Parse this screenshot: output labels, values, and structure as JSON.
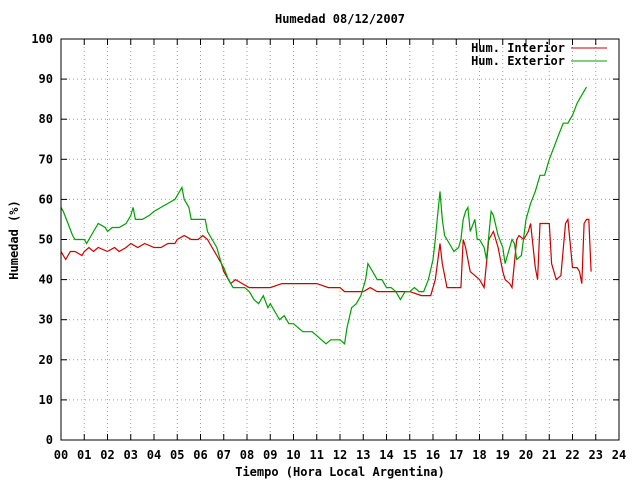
{
  "chart_data": {
    "type": "line",
    "title": "Humedad 08/12/2007",
    "xlabel": "Tiempo (Hora Local Argentina)",
    "ylabel": "Humedad (%)",
    "xlim": [
      0,
      24
    ],
    "ylim": [
      0,
      100
    ],
    "x_ticks": [
      "00",
      "01",
      "02",
      "03",
      "04",
      "05",
      "06",
      "07",
      "08",
      "09",
      "10",
      "11",
      "12",
      "13",
      "14",
      "15",
      "16",
      "17",
      "18",
      "19",
      "20",
      "21",
      "22",
      "23",
      "24"
    ],
    "y_ticks": [
      0,
      10,
      20,
      30,
      40,
      50,
      60,
      70,
      80,
      90,
      100
    ],
    "grid": true,
    "legend_position": "top-right",
    "colors": {
      "interior": "#cc0000",
      "exterior": "#00a000"
    },
    "series": [
      {
        "name": "Hum. Interior",
        "color": "#cc0000",
        "points": [
          [
            0.0,
            47
          ],
          [
            0.1,
            46
          ],
          [
            0.2,
            45
          ],
          [
            0.3,
            46
          ],
          [
            0.4,
            47
          ],
          [
            0.6,
            47
          ],
          [
            0.9,
            46
          ],
          [
            1.0,
            47
          ],
          [
            1.2,
            48
          ],
          [
            1.4,
            47
          ],
          [
            1.6,
            48
          ],
          [
            2.0,
            47
          ],
          [
            2.3,
            48
          ],
          [
            2.5,
            47
          ],
          [
            2.8,
            48
          ],
          [
            3.0,
            49
          ],
          [
            3.3,
            48
          ],
          [
            3.6,
            49
          ],
          [
            4.0,
            48
          ],
          [
            4.3,
            48
          ],
          [
            4.6,
            49
          ],
          [
            4.9,
            49
          ],
          [
            5.0,
            50
          ],
          [
            5.3,
            51
          ],
          [
            5.6,
            50
          ],
          [
            5.9,
            50
          ],
          [
            6.1,
            51
          ],
          [
            6.3,
            50
          ],
          [
            6.5,
            48
          ],
          [
            6.7,
            46
          ],
          [
            6.9,
            44
          ],
          [
            7.0,
            42
          ],
          [
            7.2,
            40
          ],
          [
            7.3,
            39
          ],
          [
            7.5,
            40
          ],
          [
            7.8,
            39
          ],
          [
            8.1,
            38
          ],
          [
            8.5,
            38
          ],
          [
            9.0,
            38
          ],
          [
            9.5,
            39
          ],
          [
            10.0,
            39
          ],
          [
            10.5,
            39
          ],
          [
            11.0,
            39
          ],
          [
            11.5,
            38
          ],
          [
            12.0,
            38
          ],
          [
            12.2,
            37
          ],
          [
            12.5,
            37
          ],
          [
            12.8,
            37
          ],
          [
            13.0,
            37
          ],
          [
            13.3,
            38
          ],
          [
            13.6,
            37
          ],
          [
            14.0,
            37
          ],
          [
            14.5,
            37
          ],
          [
            15.0,
            37
          ],
          [
            15.5,
            36
          ],
          [
            15.9,
            36
          ],
          [
            16.1,
            40
          ],
          [
            16.3,
            49
          ],
          [
            16.4,
            44
          ],
          [
            16.6,
            38
          ],
          [
            16.9,
            38
          ],
          [
            17.2,
            38
          ],
          [
            17.3,
            50
          ],
          [
            17.4,
            48
          ],
          [
            17.6,
            42
          ],
          [
            17.8,
            41
          ],
          [
            18.0,
            40
          ],
          [
            18.2,
            38
          ],
          [
            18.4,
            50
          ],
          [
            18.6,
            52
          ],
          [
            18.8,
            48
          ],
          [
            19.0,
            42
          ],
          [
            19.1,
            40
          ],
          [
            19.3,
            39
          ],
          [
            19.4,
            38
          ],
          [
            19.6,
            50
          ],
          [
            19.7,
            51
          ],
          [
            19.9,
            50
          ],
          [
            20.1,
            52
          ],
          [
            20.2,
            54
          ],
          [
            20.4,
            43
          ],
          [
            20.5,
            40
          ],
          [
            20.6,
            54
          ],
          [
            20.8,
            54
          ],
          [
            21.0,
            54
          ],
          [
            21.1,
            44
          ],
          [
            21.3,
            40
          ],
          [
            21.5,
            41
          ],
          [
            21.7,
            54
          ],
          [
            21.8,
            55
          ],
          [
            22.0,
            43
          ],
          [
            22.2,
            43
          ],
          [
            22.3,
            42
          ],
          [
            22.4,
            39
          ],
          [
            22.5,
            54
          ],
          [
            22.6,
            55
          ],
          [
            22.7,
            55
          ],
          [
            22.8,
            42
          ]
        ]
      },
      {
        "name": "Hum. Exterior",
        "color": "#00a000",
        "points": [
          [
            0.0,
            58
          ],
          [
            0.1,
            57
          ],
          [
            0.3,
            54
          ],
          [
            0.5,
            51
          ],
          [
            0.6,
            50
          ],
          [
            0.8,
            50
          ],
          [
            1.0,
            50
          ],
          [
            1.1,
            49
          ],
          [
            1.3,
            51
          ],
          [
            1.5,
            53
          ],
          [
            1.6,
            54
          ],
          [
            1.9,
            53
          ],
          [
            2.0,
            52
          ],
          [
            2.2,
            53
          ],
          [
            2.5,
            53
          ],
          [
            2.8,
            54
          ],
          [
            3.0,
            56
          ],
          [
            3.1,
            58
          ],
          [
            3.2,
            55
          ],
          [
            3.5,
            55
          ],
          [
            3.8,
            56
          ],
          [
            4.0,
            57
          ],
          [
            4.3,
            58
          ],
          [
            4.6,
            59
          ],
          [
            4.9,
            60
          ],
          [
            5.0,
            61
          ],
          [
            5.1,
            62
          ],
          [
            5.2,
            63
          ],
          [
            5.3,
            60
          ],
          [
            5.5,
            58
          ],
          [
            5.6,
            55
          ],
          [
            5.9,
            55
          ],
          [
            6.2,
            55
          ],
          [
            6.3,
            52
          ],
          [
            6.5,
            50
          ],
          [
            6.7,
            48
          ],
          [
            6.9,
            44
          ],
          [
            7.0,
            43
          ],
          [
            7.2,
            40
          ],
          [
            7.4,
            38
          ],
          [
            7.6,
            38
          ],
          [
            7.9,
            38
          ],
          [
            8.1,
            37
          ],
          [
            8.2,
            36
          ],
          [
            8.3,
            35
          ],
          [
            8.5,
            34
          ],
          [
            8.7,
            36
          ],
          [
            8.9,
            33
          ],
          [
            9.0,
            34
          ],
          [
            9.2,
            32
          ],
          [
            9.4,
            30
          ],
          [
            9.6,
            31
          ],
          [
            9.8,
            29
          ],
          [
            10.0,
            29
          ],
          [
            10.2,
            28
          ],
          [
            10.4,
            27
          ],
          [
            10.6,
            27
          ],
          [
            10.8,
            27
          ],
          [
            11.0,
            26
          ],
          [
            11.2,
            25
          ],
          [
            11.4,
            24
          ],
          [
            11.6,
            25
          ],
          [
            11.8,
            25
          ],
          [
            12.0,
            25
          ],
          [
            12.2,
            24
          ],
          [
            12.3,
            28
          ],
          [
            12.5,
            33
          ],
          [
            12.7,
            34
          ],
          [
            12.9,
            36
          ],
          [
            13.1,
            40
          ],
          [
            13.2,
            44
          ],
          [
            13.4,
            42
          ],
          [
            13.6,
            40
          ],
          [
            13.8,
            40
          ],
          [
            14.0,
            38
          ],
          [
            14.2,
            38
          ],
          [
            14.4,
            37
          ],
          [
            14.6,
            35
          ],
          [
            14.8,
            37
          ],
          [
            15.0,
            37
          ],
          [
            15.2,
            38
          ],
          [
            15.4,
            37
          ],
          [
            15.6,
            37
          ],
          [
            15.8,
            40
          ],
          [
            16.0,
            45
          ],
          [
            16.1,
            50
          ],
          [
            16.2,
            56
          ],
          [
            16.3,
            62
          ],
          [
            16.4,
            55
          ],
          [
            16.5,
            51
          ],
          [
            16.7,
            49
          ],
          [
            16.9,
            47
          ],
          [
            17.1,
            48
          ],
          [
            17.2,
            50
          ],
          [
            17.3,
            55
          ],
          [
            17.4,
            57
          ],
          [
            17.5,
            58
          ],
          [
            17.6,
            52
          ],
          [
            17.8,
            55
          ],
          [
            17.9,
            50
          ],
          [
            18.0,
            50
          ],
          [
            18.2,
            48
          ],
          [
            18.3,
            45
          ],
          [
            18.5,
            57
          ],
          [
            18.6,
            56
          ],
          [
            18.8,
            51
          ],
          [
            19.0,
            48
          ],
          [
            19.1,
            44
          ],
          [
            19.2,
            46
          ],
          [
            19.4,
            50
          ],
          [
            19.5,
            49
          ],
          [
            19.6,
            45
          ],
          [
            19.8,
            46
          ],
          [
            20.0,
            55
          ],
          [
            20.2,
            59
          ],
          [
            20.4,
            62
          ],
          [
            20.6,
            66
          ],
          [
            20.8,
            66
          ],
          [
            21.0,
            70
          ],
          [
            21.2,
            73
          ],
          [
            21.4,
            76
          ],
          [
            21.6,
            79
          ],
          [
            21.8,
            79
          ],
          [
            22.0,
            81
          ],
          [
            22.2,
            84
          ],
          [
            22.4,
            86
          ],
          [
            22.6,
            88
          ]
        ]
      }
    ]
  }
}
